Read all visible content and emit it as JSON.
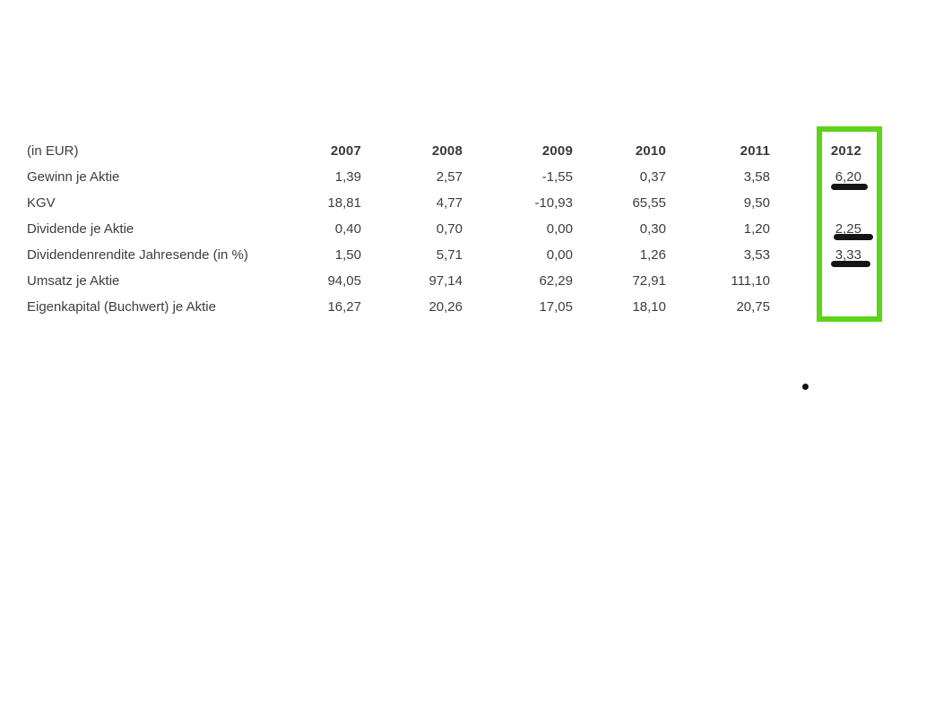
{
  "table": {
    "unit_label": "(in EUR)",
    "years": [
      "2007",
      "2008",
      "2009",
      "2010",
      "2011",
      "2012"
    ],
    "rows": [
      {
        "label": "Gewinn je Aktie",
        "values": [
          "1,39",
          "2,57",
          "-1,55",
          "0,37",
          "3,58",
          "6,20"
        ]
      },
      {
        "label": "KGV",
        "values": [
          "18,81",
          "4,77",
          "-10,93",
          "65,55",
          "9,50",
          ""
        ]
      },
      {
        "label": "Dividende je Aktie",
        "values": [
          "0,40",
          "0,70",
          "0,00",
          "0,30",
          "1,20",
          "2,25"
        ]
      },
      {
        "label": "Dividendenrendite Jahresende (in %)",
        "values": [
          "1,50",
          "5,71",
          "0,00",
          "1,26",
          "3,53",
          "3,33"
        ]
      },
      {
        "label": "Umsatz je Aktie",
        "values": [
          "94,05",
          "97,14",
          "62,29",
          "72,91",
          "111,10",
          ""
        ]
      },
      {
        "label": "Eigenkapital (Buchwert) je Aktie",
        "values": [
          "16,27",
          "20,26",
          "17,05",
          "18,10",
          "20,75",
          ""
        ]
      }
    ]
  },
  "annotations": {
    "highlighted_year": "2012",
    "highlight_color": "#5cd41c",
    "underlined_values": [
      "6,20",
      "2,25",
      "3,33"
    ],
    "mark_color": "#141414"
  }
}
